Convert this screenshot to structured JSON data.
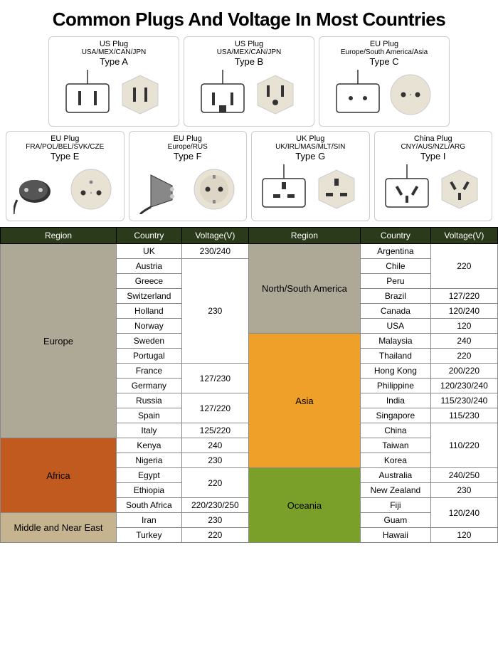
{
  "title": "Common Plugs And Voltage In Most Countries",
  "plugs": [
    {
      "name": "US Plug",
      "regions": "USA/MEX/CAN/JPN",
      "type": "Type A",
      "plugKind": "A",
      "socketKind": "A"
    },
    {
      "name": "US Plug",
      "regions": "USA/MEX/CAN/JPN",
      "type": "Type B",
      "plugKind": "B",
      "socketKind": "B"
    },
    {
      "name": "EU Plug",
      "regions": "Europe/South America/Asia",
      "type": "Type C",
      "plugKind": "C",
      "socketKind": "C"
    },
    {
      "name": "EU Plug",
      "regions": "FRA/POL/BEL/SVK/CZE",
      "type": "Type E",
      "plugKind": "E",
      "socketKind": "E"
    },
    {
      "name": "EU Plug",
      "regions": "Europe/RUS",
      "type": "Type F",
      "plugKind": "F",
      "socketKind": "F"
    },
    {
      "name": "UK Plug",
      "regions": "UK/IRL/MAS/MLT/SIN",
      "type": "Type G",
      "plugKind": "G",
      "socketKind": "G"
    },
    {
      "name": "China Plug",
      "regions": "CNY/AUS/NZL/ARG",
      "type": "Type I",
      "plugKind": "I",
      "socketKind": "I"
    }
  ],
  "table": {
    "headers": [
      "Region",
      "Country",
      "Voltage(V)",
      "Region",
      "Country",
      "Voltage(V)"
    ],
    "header_bg": "#2a3a1a",
    "region_colors": {
      "Europe": "#aea897",
      "Africa": "#c05a1f",
      "Middle and Near East": "#c6b38f",
      "North/South America": "#aea897",
      "Asia": "#eea028",
      "Oceania": "#7aa02a"
    },
    "rows": [
      {
        "lregion": {
          "text": "Europe",
          "rowspan": 13
        },
        "lcountry": "UK",
        "lvolt": {
          "text": "230/240",
          "rowspan": 1
        },
        "rregion": {
          "text": "North/South America",
          "rowspan": 6
        },
        "rcountry": "Argentina",
        "rvolt": {
          "text": "220",
          "rowspan": 3
        }
      },
      {
        "lcountry": "Austria",
        "lvolt": {
          "text": "230",
          "rowspan": 7
        },
        "rcountry": "Chile"
      },
      {
        "lcountry": "Greece",
        "rcountry": "Peru"
      },
      {
        "lcountry": "Switzerland",
        "rcountry": "Brazil",
        "rvolt": {
          "text": "127/220",
          "rowspan": 1
        }
      },
      {
        "lcountry": "Holland",
        "rcountry": "Canada",
        "rvolt": {
          "text": "120/240",
          "rowspan": 1
        }
      },
      {
        "lcountry": "Norway",
        "rcountry": "USA",
        "rvolt": {
          "text": "120",
          "rowspan": 1
        }
      },
      {
        "lcountry": "Sweden",
        "rregion": {
          "text": "Asia",
          "rowspan": 9
        },
        "rcountry": "Malaysia",
        "rvolt": {
          "text": "240",
          "rowspan": 1
        }
      },
      {
        "lcountry": "Portugal",
        "rcountry": "Thailand",
        "rvolt": {
          "text": "220",
          "rowspan": 1
        }
      },
      {
        "lcountry": "France",
        "lvolt": {
          "text": "127/230",
          "rowspan": 2
        },
        "rcountry": "Hong Kong",
        "rvolt": {
          "text": "200/220",
          "rowspan": 1
        }
      },
      {
        "lcountry": "Germany",
        "rcountry": "Philippine",
        "rvolt": {
          "text": "120/230/240",
          "rowspan": 1
        }
      },
      {
        "lcountry": "Russia",
        "lvolt": {
          "text": "127/220",
          "rowspan": 2
        },
        "rcountry": "India",
        "rvolt": {
          "text": "115/230/240",
          "rowspan": 1
        }
      },
      {
        "lcountry": "Spain",
        "rcountry": "Singapore",
        "rvolt": {
          "text": "115/230",
          "rowspan": 1
        }
      },
      {
        "lcountry": "Italy",
        "lvolt": {
          "text": "125/220",
          "rowspan": 1
        },
        "rcountry": "China",
        "rvolt": {
          "text": "110/220",
          "rowspan": 3
        }
      },
      {
        "lregion": {
          "text": "Africa",
          "rowspan": 5
        },
        "lcountry": "Kenya",
        "lvolt": {
          "text": "240",
          "rowspan": 1
        },
        "rcountry": "Taiwan"
      },
      {
        "lcountry": "Nigeria",
        "lvolt": {
          "text": "230",
          "rowspan": 1
        },
        "rcountry": "Korea"
      },
      {
        "lcountry": "Egypt",
        "lvolt": {
          "text": "220",
          "rowspan": 2
        },
        "rregion": {
          "text": "Oceania",
          "rowspan": 5
        },
        "rcountry": "Australia",
        "rvolt": {
          "text": "240/250",
          "rowspan": 1
        }
      },
      {
        "lcountry": "Ethiopia",
        "rcountry": "New Zealand",
        "rvolt": {
          "text": "230",
          "rowspan": 1
        }
      },
      {
        "lcountry": "South Africa",
        "lvolt": {
          "text": "220/230/250",
          "rowspan": 1
        },
        "rcountry": "Fiji",
        "rvolt": {
          "text": "120/240",
          "rowspan": 2
        }
      },
      {
        "lregion": {
          "text": "Middle and Near East",
          "rowspan": 2
        },
        "lcountry": "Iran",
        "lvolt": {
          "text": "230",
          "rowspan": 1
        },
        "rcountry": "Guam"
      },
      {
        "lcountry": "Turkey",
        "lvolt": {
          "text": "220",
          "rowspan": 1
        },
        "rcountry": "Hawaii",
        "rvolt": {
          "text": "120",
          "rowspan": 1
        }
      }
    ]
  }
}
